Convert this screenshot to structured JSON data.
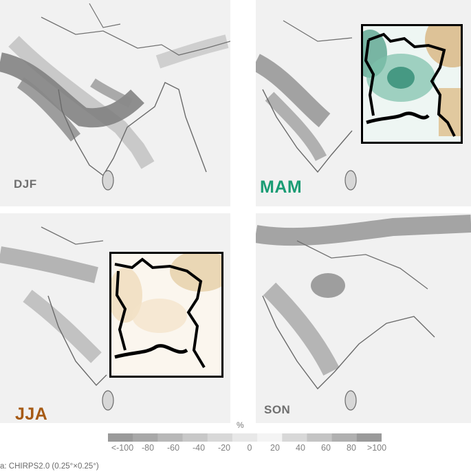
{
  "panels": [
    {
      "id": "djf",
      "label": "DJF",
      "label_color": "#6f6f6f",
      "has_inset": false
    },
    {
      "id": "mam",
      "label": "MAM",
      "label_color": "#1a9c74",
      "has_inset": true
    },
    {
      "id": "jja",
      "label": "JJA",
      "label_color": "#a65a14",
      "has_inset": true
    },
    {
      "id": "son",
      "label": "SON",
      "label_color": "#6f6f6f",
      "has_inset": false
    }
  ],
  "colorbar": {
    "unit": "%",
    "ticks": [
      "<-100",
      "-80",
      "-60",
      "-40",
      "-20",
      "0",
      "20",
      "40",
      "60",
      "80",
      ">100"
    ],
    "colors": [
      "#9a9a9a",
      "#a8a8a8",
      "#b8b8b8",
      "#c8c8c8",
      "#d8d8d8",
      "#e8e8e8",
      "#f4f4f4",
      "#d8d8d8",
      "#c4c4c4",
      "#b0b0b0",
      "#9a9a9a"
    ],
    "inset_colors": {
      "wet": "#2fa58c",
      "dry": "#d8b57f"
    }
  },
  "source": "a: CHIRPS2.0 (0.25°×0.25°)"
}
